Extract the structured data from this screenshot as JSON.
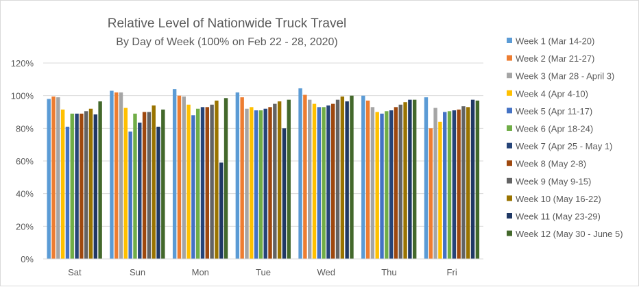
{
  "chart_data": {
    "type": "bar",
    "title": "Relative Level of Nationwide Truck Travel",
    "subtitle": "By Day of Week (100% on Feb 22 - 28, 2020)",
    "xlabel": "",
    "ylabel": "",
    "ylim": [
      0,
      120
    ],
    "yticks": [
      "0%",
      "20%",
      "40%",
      "60%",
      "80%",
      "100%",
      "120%"
    ],
    "grid": true,
    "legend_position": "right",
    "categories": [
      "Sat",
      "Sun",
      "Mon",
      "Tue",
      "Wed",
      "Thu",
      "Fri"
    ],
    "series": [
      {
        "name": "Week 1 (Mar 14-20)",
        "color": "#5b9bd5",
        "values": [
          98,
          103,
          104,
          102,
          104.5,
          100,
          99
        ]
      },
      {
        "name": "Week 2 (Mar 21-27)",
        "color": "#ed7d31",
        "values": [
          99.5,
          102,
          100,
          99,
          100.5,
          97,
          80
        ]
      },
      {
        "name": "Week 3 (Mar 28 - April 3)",
        "color": "#a5a5a5",
        "values": [
          99,
          102,
          99.5,
          92,
          97.5,
          93,
          92.5
        ]
      },
      {
        "name": "Week 4 (Apr 4-10)",
        "color": "#ffc000",
        "values": [
          91.5,
          92.5,
          94.5,
          93,
          95,
          90,
          84
        ]
      },
      {
        "name": "Week 5 (Apr 11-17)",
        "color": "#4472c4",
        "values": [
          81,
          78,
          88,
          91,
          93,
          89,
          90
        ]
      },
      {
        "name": "Week 6 (Apr 18-24)",
        "color": "#70ad47",
        "values": [
          89,
          89,
          92,
          91,
          93,
          90.5,
          90.5
        ]
      },
      {
        "name": "Week 7 (Apr 25 - May 1)",
        "color": "#264478",
        "values": [
          89,
          83.5,
          93,
          92,
          94,
          91,
          91
        ]
      },
      {
        "name": "Week 8 (May 2-8)",
        "color": "#9e480e",
        "values": [
          89,
          90,
          93,
          93,
          95,
          93,
          91.5
        ]
      },
      {
        "name": "Week 9 (May 9-15)",
        "color": "#636363",
        "values": [
          90.5,
          90,
          94.5,
          95,
          97.5,
          94.5,
          93.5
        ]
      },
      {
        "name": "Week 10 (May 16-22)",
        "color": "#997300",
        "values": [
          92,
          94,
          97,
          96.5,
          99.5,
          96,
          93
        ]
      },
      {
        "name": "Week 11 (May 23-29)",
        "color": "#203864",
        "values": [
          88.5,
          81,
          59,
          80,
          96.5,
          97.5,
          97.5
        ]
      },
      {
        "name": "Week 12 (May 30 - June 5)",
        "color": "#43682b",
        "values": [
          96.5,
          91.5,
          98.5,
          97.5,
          100,
          97.5,
          97
        ]
      }
    ]
  }
}
